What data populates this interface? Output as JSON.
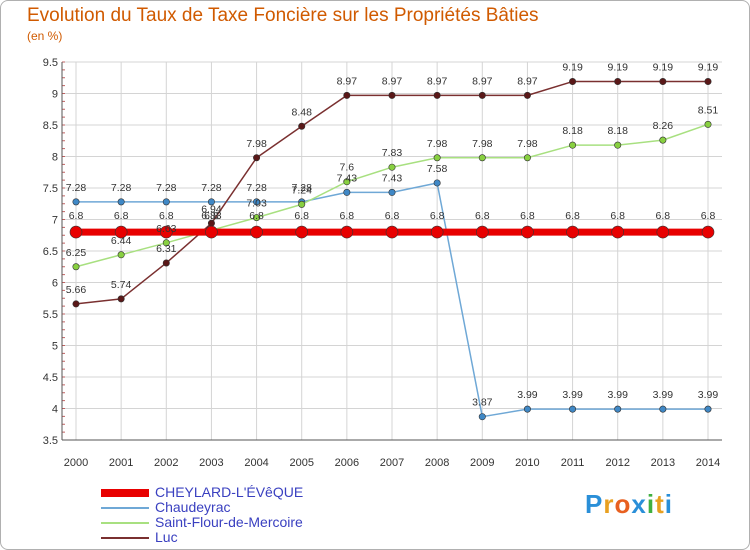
{
  "header": {
    "title": "Evolution du Taux de Taxe Foncière sur les Propriétés Bâties",
    "unit": "(en %)"
  },
  "logo": {
    "text": "Proxiti",
    "letters": [
      "P",
      "r",
      "o",
      "x",
      "i",
      "t",
      "i"
    ],
    "colors": [
      "#2a8fd8",
      "#e8a020",
      "#e86020",
      "#2a8fd8",
      "#40b040",
      "#e8a020",
      "#2a8fd8"
    ]
  },
  "chart_data": {
    "type": "line",
    "title": "Evolution du Taux de Taxe Foncière sur les Propriétés Bâties",
    "ylabel": "(en %)",
    "xlabel": "",
    "x": [
      2000,
      2001,
      2002,
      2003,
      2004,
      2005,
      2006,
      2007,
      2008,
      2009,
      2010,
      2011,
      2012,
      2013,
      2014
    ],
    "ylim": [
      3.5,
      9.5
    ],
    "yticks": [
      3.5,
      4,
      4.5,
      5,
      5.5,
      6,
      6.5,
      7,
      7.5,
      8,
      8.5,
      9,
      9.5
    ],
    "grid": true,
    "legend_position": "bottom-left",
    "series": [
      {
        "name": "CHEYLARD-L'ÉVêQUE",
        "color": "#e80000",
        "dot": "#e80000",
        "width": 7,
        "values": [
          6.8,
          6.8,
          6.8,
          6.8,
          6.8,
          6.8,
          6.8,
          6.8,
          6.8,
          6.8,
          6.8,
          6.8,
          6.8,
          6.8,
          6.8
        ],
        "labels": [
          "6.8",
          "6.8",
          "6.8",
          "6.8",
          "6.8",
          "6.8",
          "6.8",
          "6.8",
          "6.8",
          "6.8",
          "6.8",
          "6.8",
          "6.8",
          "6.8",
          "6.8"
        ]
      },
      {
        "name": "Chaudeyrac",
        "color": "#6fa8d6",
        "dot": "#3f88c6",
        "width": 1.5,
        "values": [
          7.28,
          7.28,
          7.28,
          7.28,
          7.28,
          7.28,
          7.43,
          7.43,
          7.58,
          3.87,
          3.99,
          3.99,
          3.99,
          3.99,
          3.99
        ],
        "labels": [
          "7.28",
          "7.28",
          "7.28",
          "7.28",
          "7.28",
          "7.28",
          "7.43",
          "7.43",
          "7.58",
          "3.87",
          "3.99",
          "3.99",
          "3.99",
          "3.99",
          "3.99"
        ]
      },
      {
        "name": "Saint-Flour-de-Mercoire",
        "color": "#a8e080",
        "dot": "#88d040",
        "width": 1.5,
        "values": [
          6.25,
          6.44,
          6.63,
          6.83,
          7.03,
          7.24,
          7.6,
          7.83,
          7.98,
          7.98,
          7.98,
          8.18,
          8.18,
          8.26,
          8.51
        ],
        "labels": [
          "6.25",
          "6.44",
          "6.63",
          "6.83",
          "7.03",
          "7.24",
          "7.6",
          "7.83",
          "7.98",
          "7.98",
          "7.98",
          "8.18",
          "8.18",
          "8.26",
          "8.51"
        ]
      },
      {
        "name": "Luc",
        "color": "#7a3030",
        "dot": "#5a1818",
        "width": 1.5,
        "values": [
          5.66,
          5.74,
          6.31,
          6.94,
          7.98,
          8.48,
          8.97,
          8.97,
          8.97,
          8.97,
          8.97,
          9.19,
          9.19,
          9.19,
          9.19
        ],
        "labels": [
          "5.66",
          "5.74",
          "6.31",
          "6.94",
          "7.98",
          "8.48",
          "8.97",
          "8.97",
          "8.97",
          "8.97",
          "8.97",
          "9.19",
          "9.19",
          "9.19",
          "9.19"
        ]
      }
    ]
  }
}
